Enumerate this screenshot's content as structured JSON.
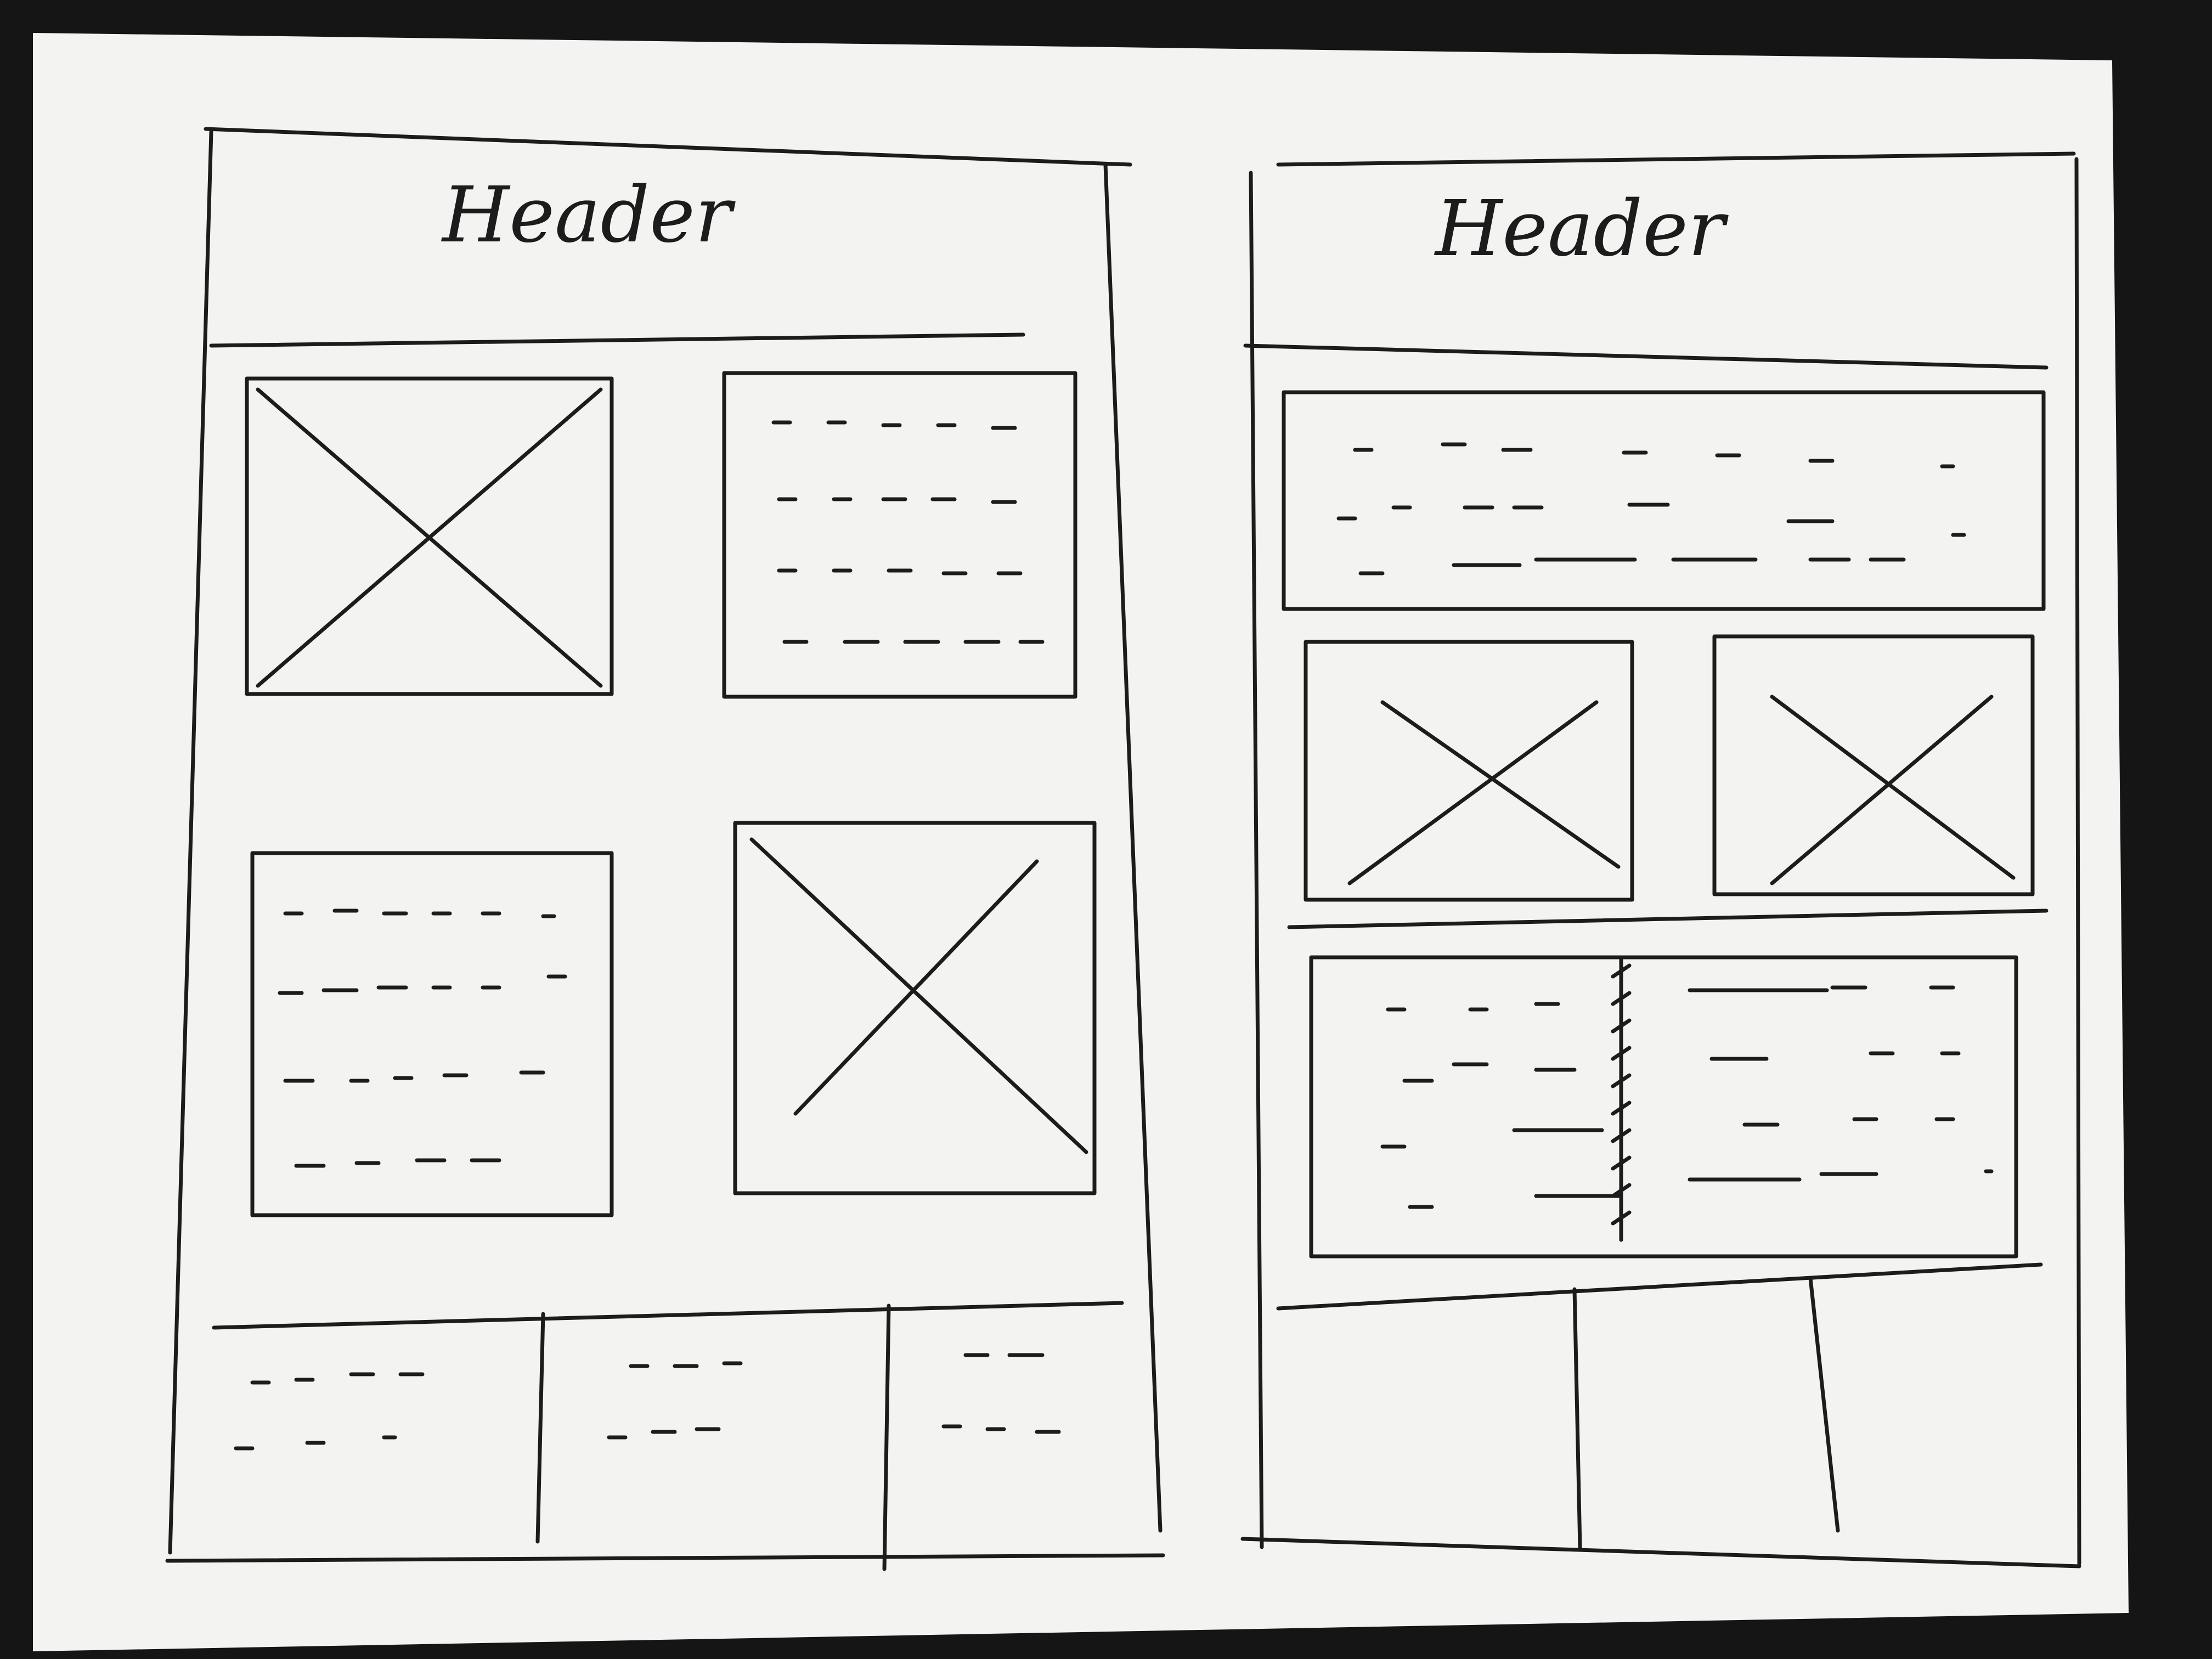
{
  "page": {
    "background_color": "#151515",
    "paper_color": "#f3f3f1",
    "ink_color": "#1c1c1c"
  },
  "sketches": [
    {
      "id": "left-wireframe",
      "header": {
        "label": "Header"
      },
      "rows": [
        [
          "image-placeholder",
          "text-block"
        ],
        [
          "text-block",
          "image-placeholder"
        ]
      ],
      "footer_columns": 3
    },
    {
      "id": "right-wireframe",
      "header": {
        "label": "Header"
      },
      "rows": [
        [
          "wide-text-block"
        ],
        [
          "image-placeholder",
          "image-placeholder"
        ],
        [
          "two-column-text-block"
        ]
      ],
      "footer_columns": 3
    }
  ]
}
